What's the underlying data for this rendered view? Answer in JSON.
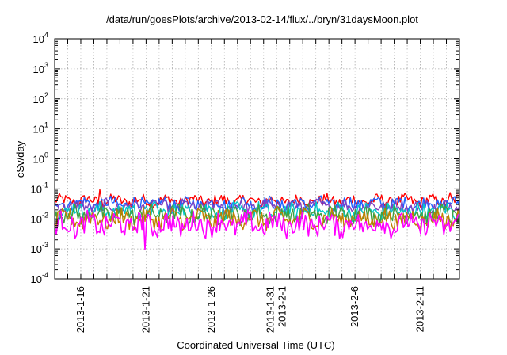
{
  "chart_data": {
    "type": "line",
    "title": "/data/run/goesPlots/archive/2013-02-14/flux/../bryn/31daysMoon.plot",
    "xlabel": "Coordinated Universal Time (UTC)",
    "ylabel": "cSv/day",
    "y_scale": "log",
    "ylim": [
      0.0001,
      10000
    ],
    "y_ticks": [
      {
        "value": 10000,
        "base": "10",
        "exp": "4"
      },
      {
        "value": 1000,
        "base": "10",
        "exp": "3"
      },
      {
        "value": 100,
        "base": "10",
        "exp": "2"
      },
      {
        "value": 10,
        "base": "10",
        "exp": "1"
      },
      {
        "value": 1,
        "base": "10",
        "exp": "0"
      },
      {
        "value": 0.1,
        "base": "10",
        "exp": "-1"
      },
      {
        "value": 0.01,
        "base": "10",
        "exp": "-2"
      },
      {
        "value": 0.001,
        "base": "10",
        "exp": "-3"
      },
      {
        "value": 0.0001,
        "base": "10",
        "exp": "-4"
      }
    ],
    "x_range": [
      "2013-01-14",
      "2013-02-14"
    ],
    "x_ticks": [
      {
        "date": "2013-01-16",
        "label": [
          "2013-1-16"
        ]
      },
      {
        "date": "2013-01-21",
        "label": [
          "2013-1-21"
        ]
      },
      {
        "date": "2013-01-26",
        "label": [
          "2013-1-26"
        ]
      },
      {
        "date": "2013-01-31",
        "label": [
          "2013-1-31",
          "2013-2-1"
        ]
      },
      {
        "date": "2013-02-06",
        "label": [
          "2013-2-6"
        ]
      },
      {
        "date": "2013-02-11",
        "label": [
          "2013-2-11"
        ]
      }
    ],
    "grid": true,
    "series": [
      {
        "color": "#ff0000",
        "baseline": 0.04,
        "spread": 0.18,
        "peaks": [
          [
            "2013-01-17 12:00",
            0.095
          ],
          [
            "2013-02-13 06:00",
            0.075
          ]
        ]
      },
      {
        "color": "#2060ff",
        "baseline": 0.032,
        "spread": 0.2,
        "peaks": []
      },
      {
        "color": "#8040c0",
        "baseline": 0.026,
        "spread": 0.2,
        "peaks": []
      },
      {
        "color": "#00c8c8",
        "baseline": 0.018,
        "spread": 0.25,
        "peaks": []
      },
      {
        "color": "#40a040",
        "baseline": 0.014,
        "spread": 0.28,
        "peaks": []
      },
      {
        "color": "#c08000",
        "baseline": 0.01,
        "spread": 0.3,
        "peaks": []
      },
      {
        "color": "#ff00ff",
        "baseline": 0.0065,
        "spread": 0.35,
        "peaks": [
          [
            "2013-01-20 22:00",
            0.00095
          ]
        ]
      }
    ]
  }
}
